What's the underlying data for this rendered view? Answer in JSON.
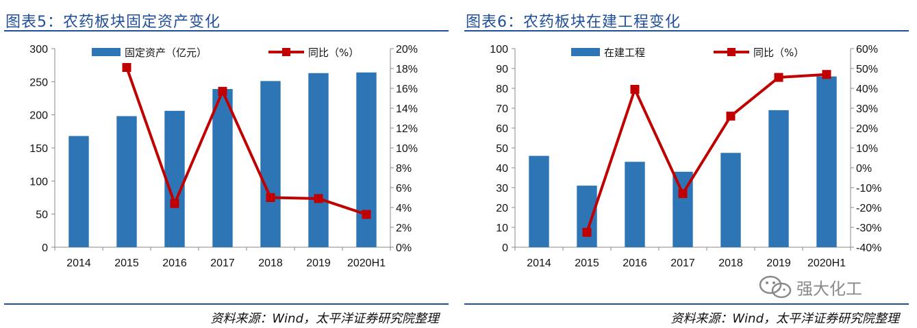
{
  "panels": [
    {
      "title": "图表5：农药板块固定资产变化",
      "source": "资料来源：Wind，太平洋证券研究院整理",
      "legend": {
        "bar": "固定资产（亿元）",
        "line": "同比（%）"
      }
    },
    {
      "title": "图表6：农药板块在建工程变化",
      "source": "资料来源：Wind，太平洋证券研究院整理",
      "legend": {
        "bar": "在建工程",
        "line": "同比（%）"
      }
    }
  ],
  "watermark": {
    "text": "强大化工",
    "icon": "wechat-icon"
  },
  "colors": {
    "bar": "#2e75b6",
    "line": "#c00000",
    "marker": "#c00000",
    "title": "#1f4e9a"
  },
  "chart_data": [
    {
      "type": "bar",
      "categories": [
        "2014",
        "2015",
        "2016",
        "2017",
        "2018",
        "2019",
        "2020H1"
      ],
      "series": [
        {
          "name": "固定资产（亿元）",
          "type": "bar",
          "axis": "left",
          "values": [
            168,
            198,
            206,
            239,
            251,
            263,
            264
          ]
        },
        {
          "name": "同比（%）",
          "type": "line",
          "axis": "right",
          "values": [
            null,
            18.1,
            4.4,
            15.7,
            5.0,
            4.9,
            3.3
          ]
        }
      ],
      "left_axis": {
        "min": 0,
        "max": 300,
        "ticks": [
          "0",
          "50",
          "100",
          "150",
          "200",
          "250",
          "300"
        ]
      },
      "right_axis": {
        "min": 0,
        "max": 20,
        "ticks": [
          "0%",
          "2%",
          "4%",
          "6%",
          "8%",
          "10%",
          "12%",
          "14%",
          "16%",
          "18%",
          "20%"
        ]
      },
      "grid": false,
      "legend_position": "top"
    },
    {
      "type": "bar",
      "categories": [
        "2014",
        "2015",
        "2016",
        "2017",
        "2018",
        "2019",
        "2020H1"
      ],
      "series": [
        {
          "name": "在建工程",
          "type": "bar",
          "axis": "left",
          "values": [
            46,
            31,
            43,
            38,
            47.5,
            69,
            86
          ]
        },
        {
          "name": "同比（%）",
          "type": "line",
          "axis": "right",
          "values": [
            null,
            -32.5,
            39.5,
            -13,
            26,
            45.5,
            47
          ]
        }
      ],
      "left_axis": {
        "min": 0,
        "max": 100,
        "ticks": [
          "0",
          "10",
          "20",
          "30",
          "40",
          "50",
          "60",
          "70",
          "80",
          "90",
          "100"
        ]
      },
      "right_axis": {
        "min": -40,
        "max": 60,
        "ticks": [
          "-40%",
          "-30%",
          "-20%",
          "-10%",
          "0%",
          "10%",
          "20%",
          "30%",
          "40%",
          "50%",
          "60%"
        ]
      },
      "grid": false,
      "legend_position": "top"
    }
  ]
}
